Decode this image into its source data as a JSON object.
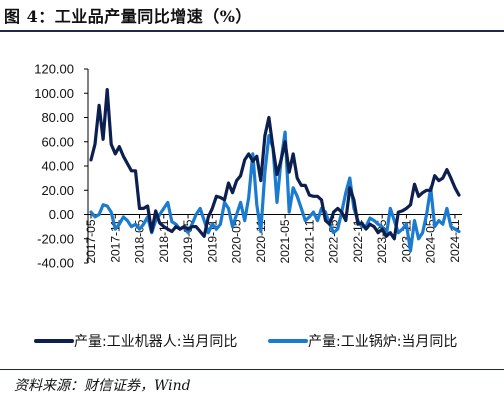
{
  "figure": {
    "title": "图 4：工业品产量同比增速（%）",
    "source": "资料来源：财信证券，Wind"
  },
  "colors": {
    "robot": "#0d1f4f",
    "boiler": "#1b7bd0",
    "axis": "#000000"
  },
  "chart_data": {
    "type": "line",
    "title": "",
    "xlabel": "",
    "ylabel": "",
    "ylim": [
      -40,
      120
    ],
    "y_ticks": [
      "120.00",
      "100.00",
      "80.00",
      "60.00",
      "40.00",
      "20.00",
      "0.00",
      "-20.00",
      "-40.00"
    ],
    "x_tick_labels": [
      "2017-05",
      "2017-11",
      "2018-05",
      "2018-11",
      "2019-05",
      "2019-11",
      "2020-05",
      "2020-11",
      "2021-05",
      "2021-11",
      "2022-05",
      "2022-11",
      "2023-05",
      "2023-11",
      "2024-05",
      "2024-11"
    ],
    "legend_position": "bottom",
    "x": [
      "2017-05",
      "2017-06",
      "2017-07",
      "2017-08",
      "2017-09",
      "2017-10",
      "2017-11",
      "2017-12",
      "2018-01",
      "2018-02",
      "2018-03",
      "2018-04",
      "2018-05",
      "2018-06",
      "2018-07",
      "2018-08",
      "2018-09",
      "2018-10",
      "2018-11",
      "2018-12",
      "2019-01",
      "2019-02",
      "2019-03",
      "2019-04",
      "2019-05",
      "2019-06",
      "2019-07",
      "2019-08",
      "2019-09",
      "2019-10",
      "2019-11",
      "2019-12",
      "2020-01",
      "2020-02",
      "2020-03",
      "2020-04",
      "2020-05",
      "2020-06",
      "2020-07",
      "2020-08",
      "2020-09",
      "2020-10",
      "2020-11",
      "2020-12",
      "2021-01",
      "2021-02",
      "2021-03",
      "2021-04",
      "2021-05",
      "2021-06",
      "2021-07",
      "2021-08",
      "2021-09",
      "2021-10",
      "2021-11",
      "2021-12",
      "2022-01",
      "2022-02",
      "2022-03",
      "2022-04",
      "2022-05",
      "2022-06",
      "2022-07",
      "2022-08",
      "2022-09",
      "2022-10",
      "2022-11",
      "2022-12",
      "2023-01",
      "2023-02",
      "2023-03",
      "2023-04",
      "2023-05",
      "2023-06",
      "2023-07",
      "2023-08",
      "2023-09",
      "2023-10",
      "2023-11",
      "2023-12",
      "2024-01",
      "2024-02",
      "2024-03",
      "2024-04",
      "2024-05",
      "2024-06",
      "2024-07",
      "2024-08",
      "2024-09",
      "2024-10",
      "2024-11",
      "2024-12"
    ],
    "series": [
      {
        "name": "产量:工业机器人:当月同比",
        "color": "#0d1f4f",
        "values": [
          45,
          58,
          90,
          62,
          103,
          58,
          50,
          56,
          48,
          42,
          36,
          36,
          5,
          5,
          7,
          -14,
          3,
          -7,
          -10,
          -12,
          -14,
          -10,
          -12,
          -10,
          -12,
          -10,
          -10,
          -14,
          -18,
          -2,
          5,
          15,
          14,
          12,
          26,
          18,
          28,
          32,
          45,
          50,
          44,
          48,
          28,
          65,
          80,
          55,
          33,
          45,
          60,
          35,
          50,
          30,
          24,
          24,
          16,
          15,
          15,
          12,
          -5,
          -8,
          2,
          5,
          2,
          -5,
          22,
          12,
          -8,
          -7,
          -12,
          -8,
          -10,
          -15,
          -12,
          -18,
          -15,
          -20,
          2,
          3,
          5,
          8,
          25,
          15,
          18,
          20,
          20,
          32,
          28,
          30,
          37,
          30,
          22,
          16
        ]
      },
      {
        "name": "产量:工业锅炉:当月同比",
        "color": "#1b7bd0",
        "values": [
          2,
          -2,
          0,
          8,
          7,
          2,
          -12,
          -8,
          -2,
          -5,
          -10,
          -8,
          -12,
          -8,
          -2,
          -15,
          -5,
          0,
          5,
          10,
          -6,
          -8,
          -12,
          -10,
          -15,
          -8,
          0,
          5,
          -5,
          -15,
          -8,
          -12,
          -8,
          10,
          5,
          -10,
          0,
          10,
          -5,
          14,
          50,
          8,
          -14,
          35,
          65,
          55,
          10,
          45,
          68,
          2,
          22,
          15,
          5,
          -5,
          -2,
          2,
          -5,
          5,
          2,
          -8,
          -15,
          -12,
          2,
          18,
          30,
          5,
          -5,
          -10,
          -10,
          -3,
          -5,
          -8,
          -10,
          -18,
          5,
          -5,
          -15,
          -12,
          -8,
          -30,
          -5,
          -20,
          -15,
          0,
          22,
          -10,
          -5,
          -8,
          5,
          -10,
          -12,
          -14
        ]
      }
    ]
  }
}
